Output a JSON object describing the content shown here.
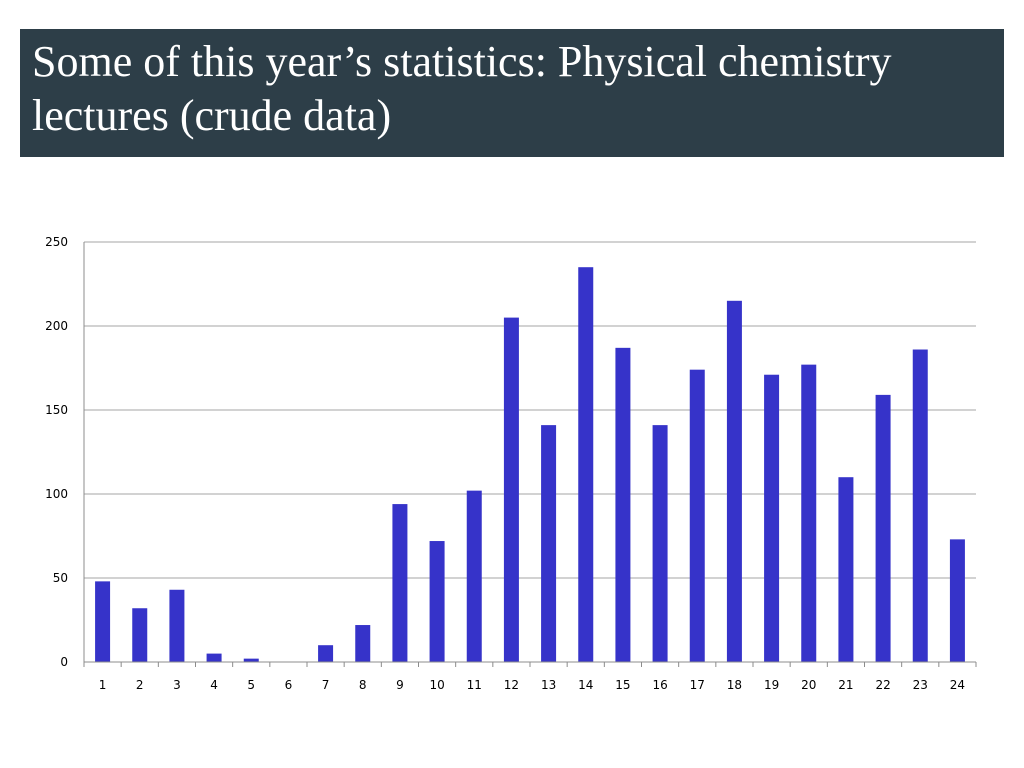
{
  "slide": {
    "title": "Some of this year’s statistics: Physical chemistry lectures (crude data)"
  },
  "colors": {
    "title_bar": "#2d3e48",
    "title_text": "#ffffff",
    "bars": "#3633c9",
    "gridlines": "#a6a6a6",
    "axis": "#8c8c8c"
  },
  "chart_data": {
    "type": "bar",
    "categories": [
      "1",
      "2",
      "3",
      "4",
      "5",
      "6",
      "7",
      "8",
      "9",
      "10",
      "11",
      "12",
      "13",
      "14",
      "15",
      "16",
      "17",
      "18",
      "19",
      "20",
      "21",
      "22",
      "23",
      "24"
    ],
    "values": [
      48,
      32,
      43,
      5,
      2,
      0,
      10,
      22,
      94,
      72,
      102,
      205,
      141,
      235,
      187,
      141,
      174,
      215,
      171,
      177,
      110,
      159,
      186,
      73
    ],
    "yticks": [
      0,
      50,
      100,
      150,
      200,
      250
    ],
    "ylim": [
      0,
      250
    ],
    "grid": true,
    "legend": "none"
  }
}
